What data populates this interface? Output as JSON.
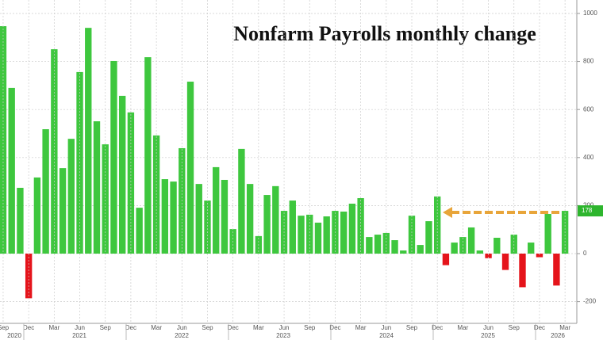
{
  "chart_data": {
    "type": "bar",
    "title": "Nonfarm Payrolls monthly change",
    "categories": [
      "Sep",
      null,
      null,
      "Dec",
      null,
      null,
      "Mar",
      null,
      null,
      "Jun",
      null,
      null,
      "Sep",
      null,
      null,
      "Dec",
      null,
      null,
      "Mar",
      null,
      null,
      "Jun",
      null,
      null,
      "Sep",
      null,
      null,
      "Dec",
      null,
      null,
      "Mar",
      null,
      null,
      "Jun",
      null,
      null,
      "Sep",
      null,
      null,
      "Dec",
      null,
      null,
      "Mar",
      null,
      null,
      "Jun",
      null,
      null,
      "Sep",
      null,
      null,
      "Dec",
      null,
      null,
      "Mar",
      null,
      null,
      "Jun",
      null,
      null,
      "Sep",
      null,
      null,
      "Dec",
      null,
      null,
      "Mar"
    ],
    "years": [
      "2020",
      "2021",
      "2022",
      "2023",
      "2024",
      "2025",
      "2026"
    ],
    "values": [
      947,
      690,
      274,
      -186,
      317,
      518,
      851,
      356,
      478,
      756,
      940,
      551,
      455,
      802,
      657,
      588,
      191,
      818,
      492,
      310,
      300,
      439,
      716,
      290,
      221,
      360,
      307,
      102,
      436,
      290,
      73,
      244,
      281,
      178,
      221,
      158,
      162,
      129,
      155,
      178,
      175,
      208,
      231,
      69,
      79,
      86,
      56,
      13,
      158,
      36,
      135,
      238,
      -48,
      46,
      69,
      109,
      13,
      -19,
      66,
      -68,
      79,
      -140,
      46,
      -15,
      165,
      -133,
      178
    ],
    "positive_color": "#3ec73e",
    "negative_color": "#e5141b",
    "marker_value": 178,
    "marker_color": "#2db52d",
    "ylim": [
      -297,
      1056
    ],
    "yticks": [
      -200,
      0,
      200,
      400,
      600,
      800,
      1000
    ],
    "grid": true
  }
}
